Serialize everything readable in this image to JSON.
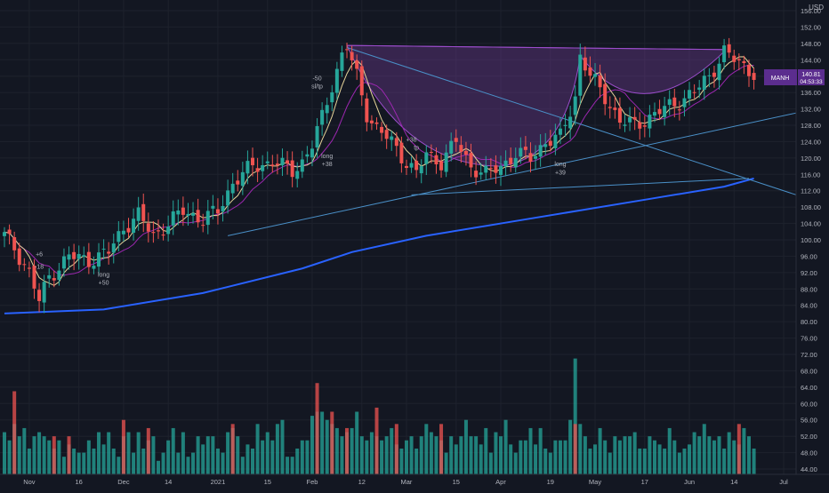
{
  "currency": "USD",
  "price_badge": {
    "ticker": "MANH",
    "price": "140.81",
    "countdown": "04:53:33"
  },
  "chart_data": {
    "type": "candlestick",
    "y_range": [
      44,
      156
    ],
    "y_ticks": [
      156,
      152,
      148,
      144,
      140,
      136,
      132,
      128,
      124,
      120,
      116,
      112,
      108,
      104,
      100,
      96,
      92,
      88,
      84,
      80,
      76,
      72,
      68,
      64,
      60,
      56,
      52,
      48,
      44
    ],
    "y_tick_labels": [
      "156.00",
      "152.00",
      "148.00",
      "144.00",
      "140.00",
      "136.00",
      "132.00",
      "128.00",
      "124.00",
      "120.00",
      "116.00",
      "112.00",
      "108.00",
      "104.00",
      "100.00",
      "96.00",
      "92.00",
      "88.00",
      "84.00",
      "80.00",
      "76.00",
      "72.00",
      "68.00",
      "64.00",
      "60.00",
      "56.00",
      "52.00",
      "48.00",
      "44.00"
    ],
    "x_labels": [
      "Nov",
      "16",
      "Dec",
      "14",
      "2021",
      "15",
      "Feb",
      "12",
      "Mar",
      "15",
      "Apr",
      "19",
      "May",
      "17",
      "Jun",
      "14",
      "Jul"
    ],
    "x_label_bars": [
      5,
      15,
      24,
      33,
      43,
      53,
      62,
      72,
      81,
      91,
      100,
      110,
      119,
      129,
      138,
      147,
      157
    ],
    "bar_count": 152,
    "volume_scale_max": 72,
    "anchors": [
      [
        0,
        101
      ],
      [
        2,
        98
      ],
      [
        5,
        92
      ],
      [
        7,
        85
      ],
      [
        9,
        91
      ],
      [
        13,
        96
      ],
      [
        17,
        95
      ],
      [
        21,
        97
      ],
      [
        24,
        103
      ],
      [
        27,
        106
      ],
      [
        30,
        101
      ],
      [
        33,
        104
      ],
      [
        36,
        107
      ],
      [
        40,
        105
      ],
      [
        43,
        107
      ],
      [
        46,
        114
      ],
      [
        50,
        118
      ],
      [
        54,
        119
      ],
      [
        58,
        117
      ],
      [
        60,
        119
      ],
      [
        62,
        123
      ],
      [
        64,
        130
      ],
      [
        66,
        138
      ],
      [
        68,
        145
      ],
      [
        69,
        147
      ],
      [
        71,
        140
      ],
      [
        73,
        131
      ],
      [
        75,
        127
      ],
      [
        78,
        124
      ],
      [
        81,
        119
      ],
      [
        83,
        116
      ],
      [
        85,
        121
      ],
      [
        88,
        119
      ],
      [
        91,
        124
      ],
      [
        94,
        118
      ],
      [
        97,
        116
      ],
      [
        100,
        118
      ],
      [
        103,
        121
      ],
      [
        106,
        120
      ],
      [
        109,
        124
      ],
      [
        112,
        125
      ],
      [
        115,
        135
      ],
      [
        116,
        145
      ],
      [
        118,
        140
      ],
      [
        121,
        135
      ],
      [
        124,
        129
      ],
      [
        127,
        128
      ],
      [
        130,
        130
      ],
      [
        133,
        132
      ],
      [
        136,
        134
      ],
      [
        139,
        136
      ],
      [
        142,
        140
      ],
      [
        145,
        146
      ],
      [
        147,
        144
      ],
      [
        151,
        140.8
      ]
    ],
    "volume_series": [
      {
        "name": "",
        "color": "#26a69a",
        "bars": [
          53,
          51,
          55,
          52,
          54,
          49,
          52,
          53,
          52,
          51,
          49,
          51,
          47,
          50,
          49,
          48,
          48,
          51,
          49,
          53,
          50,
          53,
          49,
          47,
          52,
          53,
          48,
          53,
          49,
          51,
          52,
          46,
          48,
          51,
          54,
          48,
          53,
          47,
          48,
          52,
          50,
          52,
          52,
          49,
          48,
          53,
          54,
          52,
          47,
          50,
          49,
          55,
          51,
          53,
          51,
          55,
          56,
          47,
          47,
          49,
          51,
          51,
          57,
          58,
          58,
          56,
          55,
          54,
          52,
          53,
          54,
          58,
          52,
          51,
          53,
          52,
          51,
          52,
          54,
          50,
          49,
          51,
          52,
          49,
          52,
          55,
          53,
          52,
          51,
          48,
          52,
          50,
          52,
          56,
          52,
          52,
          50,
          54,
          48,
          53,
          52,
          56,
          50,
          48,
          51,
          51,
          54,
          50,
          54,
          49,
          48,
          51,
          51,
          51,
          56,
          71,
          55,
          52,
          49,
          50,
          54,
          51,
          48,
          52,
          51,
          52,
          52,
          53,
          49,
          49,
          52,
          51,
          50,
          49,
          54,
          51,
          48,
          49,
          50,
          53,
          52,
          55,
          52,
          51,
          52,
          49,
          53,
          51,
          50,
          54,
          52,
          49
        ]
      },
      {
        "name": "",
        "color": "#ef5350",
        "bars": [
          0,
          0,
          63,
          0,
          0,
          0,
          0,
          0,
          0,
          0,
          52,
          0,
          0,
          52,
          0,
          0,
          0,
          0,
          0,
          0,
          0,
          0,
          0,
          0,
          56,
          0,
          0,
          0,
          0,
          54,
          0,
          0,
          0,
          0,
          0,
          0,
          0,
          0,
          0,
          0,
          0,
          0,
          0,
          0,
          0,
          0,
          55,
          0,
          0,
          0,
          0,
          0,
          0,
          0,
          0,
          0,
          0,
          0,
          0,
          0,
          0,
          0,
          0,
          65,
          0,
          0,
          58,
          0,
          0,
          54,
          0,
          0,
          0,
          0,
          0,
          59,
          0,
          0,
          0,
          55,
          0,
          0,
          0,
          0,
          0,
          0,
          0,
          0,
          55,
          0,
          0,
          0,
          0,
          0,
          0,
          0,
          0,
          0,
          0,
          0,
          0,
          0,
          0,
          0,
          0,
          0,
          0,
          0,
          0,
          0,
          0,
          0,
          0,
          0,
          0,
          55,
          0,
          0,
          0,
          0,
          0,
          0,
          0,
          0,
          0,
          0,
          0,
          0,
          0,
          0,
          0,
          0,
          0,
          0,
          0,
          0,
          0,
          0,
          0,
          0,
          0,
          0,
          0,
          0,
          0,
          0,
          0,
          0,
          55,
          0,
          0,
          0
        ]
      }
    ],
    "trendlines": [
      {
        "name": "upper-resistance-line",
        "color": "#4a90c8",
        "from": [
          69,
          147
        ],
        "to": [
          160,
          111
        ]
      },
      {
        "name": "lower-support-line",
        "color": "#4a90c8",
        "from": [
          45,
          101
        ],
        "to": [
          160,
          131
        ]
      },
      {
        "name": "base-support-line",
        "color": "#4a90c8",
        "from": [
          82,
          111
        ],
        "to": [
          150,
          115
        ]
      }
    ],
    "ma_lines": [
      {
        "name": "",
        "color": "#2962ff",
        "points": [
          [
            0,
            82
          ],
          [
            20,
            83
          ],
          [
            40,
            87
          ],
          [
            60,
            93
          ],
          [
            70,
            97
          ],
          [
            85,
            101
          ],
          [
            100,
            104
          ],
          [
            115,
            107
          ],
          [
            130,
            110
          ],
          [
            145,
            113
          ],
          [
            151,
            115
          ]
        ]
      }
    ],
    "annotations": [
      {
        "text": "-50",
        "bar": 63,
        "price": 139
      },
      {
        "text": "sl/tp",
        "bar": 63,
        "price": 137
      },
      {
        "text": "long",
        "bar": 65,
        "price": 120
      },
      {
        "text": "+38",
        "bar": 65,
        "price": 118
      },
      {
        "text": "+38",
        "bar": 82,
        "price": 124
      },
      {
        "text": "tp",
        "bar": 83,
        "price": 122
      },
      {
        "text": "long",
        "bar": 20,
        "price": 91
      },
      {
        "text": "+50",
        "bar": 20,
        "price": 89
      },
      {
        "text": "long",
        "bar": 112,
        "price": 118
      },
      {
        "text": "+39",
        "bar": 112,
        "price": 116
      },
      {
        "text": "+6",
        "bar": 7,
        "price": 96
      },
      {
        "text": "-18",
        "bar": 7,
        "price": 93
      }
    ]
  }
}
